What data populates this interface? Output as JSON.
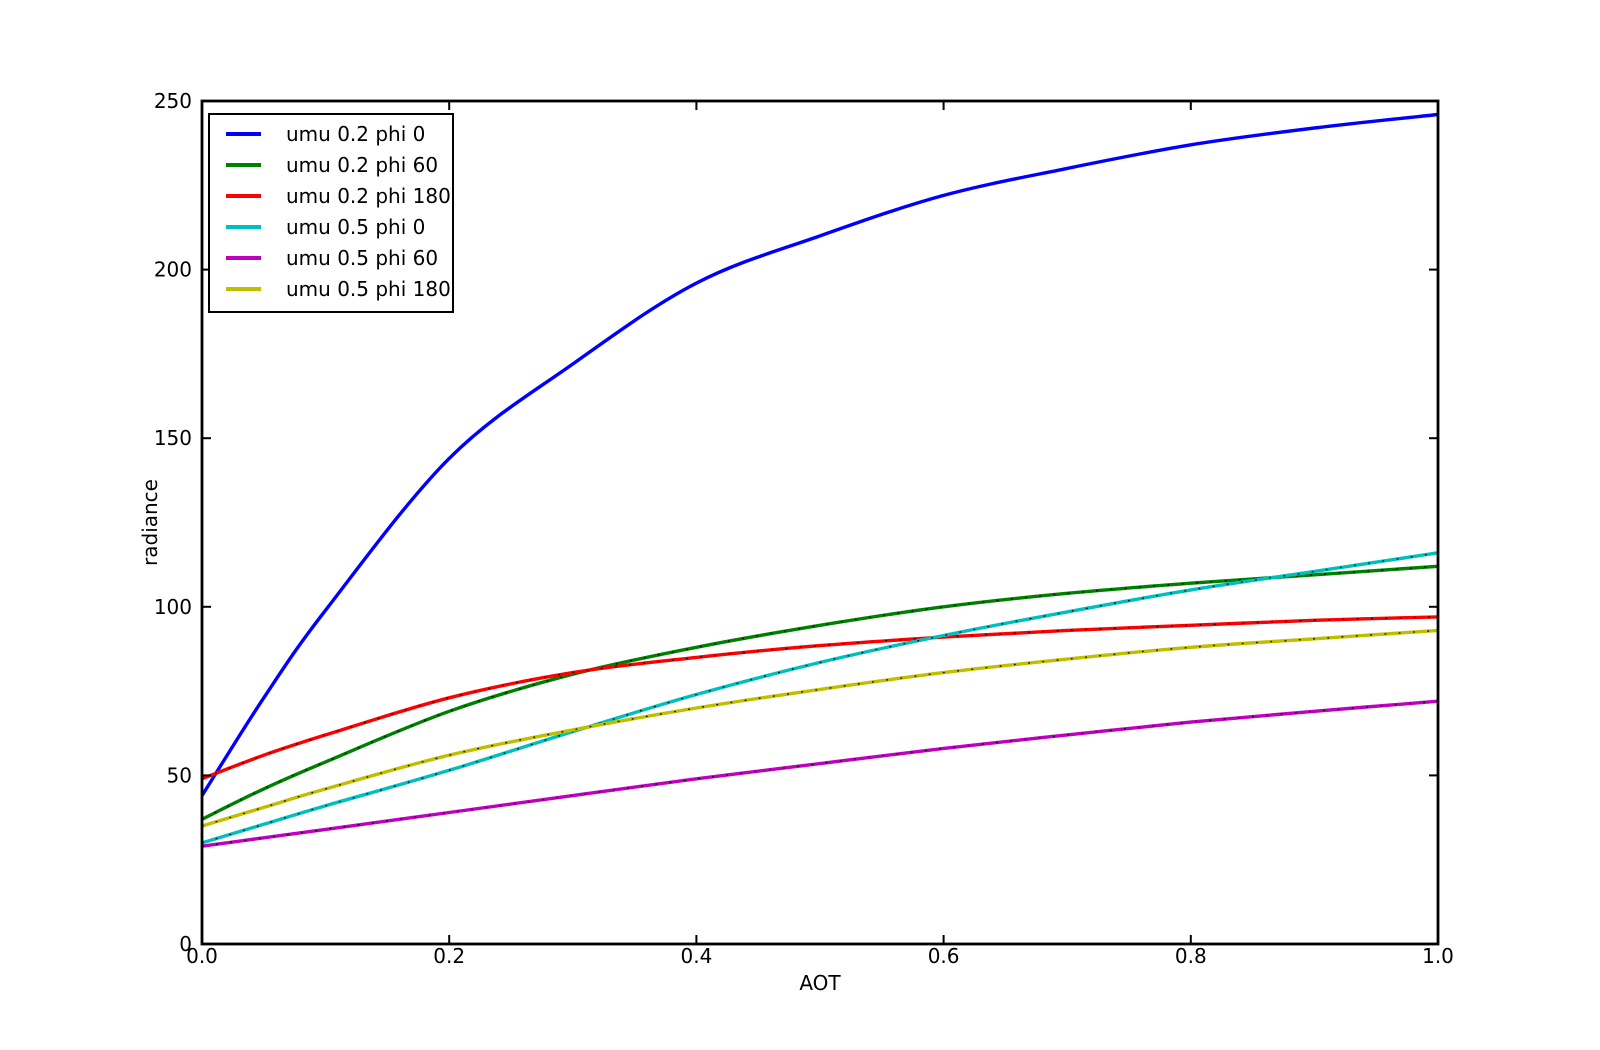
{
  "figure": {
    "background": "#ffffff",
    "axis_color": "#000000",
    "text_color": "#000000"
  },
  "chart_data": {
    "type": "line",
    "title": "",
    "xlabel": "AOT",
    "ylabel": "radiance",
    "xlim": [
      0.0,
      1.0
    ],
    "ylim": [
      0,
      250
    ],
    "grid": false,
    "legend_position": "upper-left",
    "xticks": {
      "values": [
        0.0,
        0.2,
        0.4,
        0.6,
        0.8,
        1.0
      ],
      "labels": [
        "0.0",
        "0.2",
        "0.4",
        "0.6",
        "0.8",
        "1.0"
      ]
    },
    "yticks": {
      "values": [
        0,
        50,
        100,
        150,
        200,
        250
      ],
      "labels": [
        "0",
        "50",
        "100",
        "150",
        "200",
        "250"
      ]
    },
    "x": [
      0.0,
      0.05,
      0.1,
      0.2,
      0.3,
      0.4,
      0.5,
      0.6,
      0.7,
      0.8,
      0.9,
      1.0
    ],
    "series": [
      {
        "name": "umu 0.2 phi 0",
        "color": "#0000ff",
        "dotted_overlay": false,
        "values": [
          44,
          73,
          99,
          144,
          172,
          196,
          210,
          222,
          230,
          237,
          242,
          246
        ]
      },
      {
        "name": "umu 0.2 phi 60",
        "color": "#008000",
        "dotted_overlay": true,
        "values": [
          37,
          46,
          54,
          69,
          80,
          88,
          94.5,
          100,
          104,
          107,
          109.5,
          112
        ]
      },
      {
        "name": "umu 0.2 phi 180",
        "color": "#ff0000",
        "dotted_overlay": true,
        "values": [
          49,
          56,
          62,
          73,
          80.5,
          85,
          88.5,
          91,
          93,
          94.5,
          96,
          97
        ]
      },
      {
        "name": "umu 0.5 phi 0",
        "color": "#00bfbf",
        "dotted_overlay": true,
        "values": [
          30,
          35.5,
          41,
          51.5,
          63,
          74,
          83.5,
          91.5,
          98.5,
          105,
          110.5,
          116
        ]
      },
      {
        "name": "umu 0.5 phi 60",
        "color": "#bf00bf",
        "dotted_overlay": true,
        "values": [
          29,
          31.5,
          34,
          39,
          44,
          49,
          53.5,
          58,
          62,
          65.8,
          69,
          72
        ]
      },
      {
        "name": "umu 0.5 phi 180",
        "color": "#bfbf00",
        "dotted_overlay": true,
        "values": [
          35,
          40.5,
          46,
          56,
          63.5,
          70,
          75.5,
          80.5,
          84.5,
          88,
          90.5,
          93
        ]
      }
    ]
  }
}
